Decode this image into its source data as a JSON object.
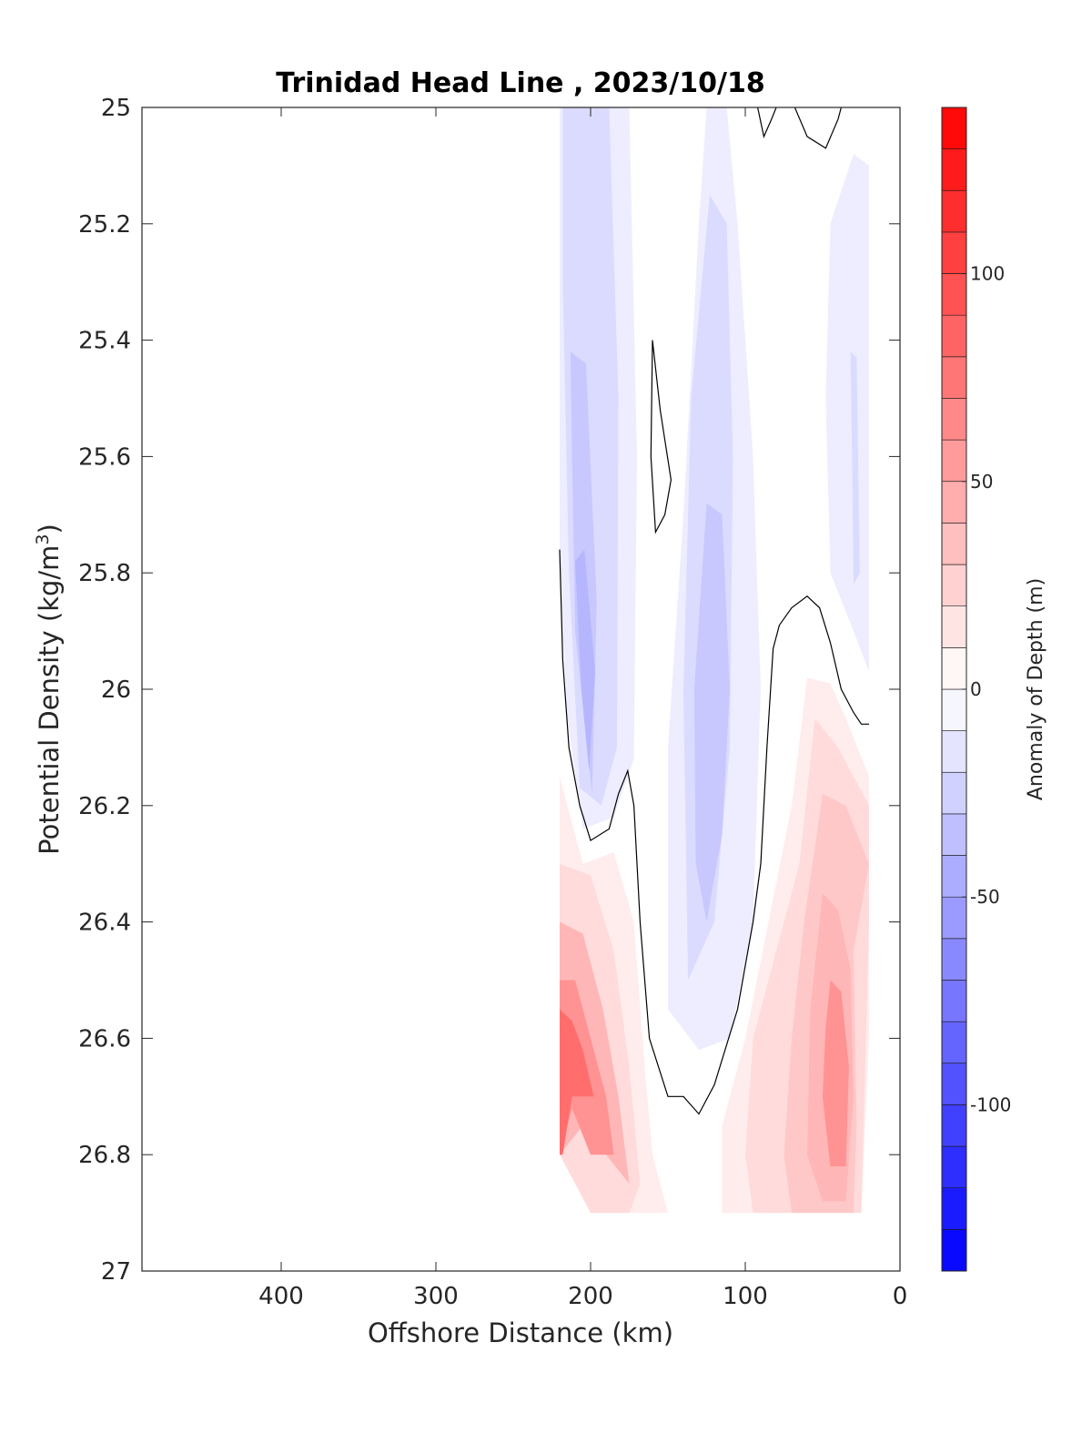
{
  "chart_data": {
    "type": "contourf",
    "title": "Trinidad Head Line , 2023/10/18",
    "xlabel": "Offshore Distance (km)",
    "ylabel": "Potential Density (kg/m",
    "ylabel_superscript": "3",
    "ylabel_suffix": ")",
    "xlim": [
      0,
      490
    ],
    "x_reversed": true,
    "ylim": [
      25,
      27
    ],
    "y_reversed": true,
    "xticks": [
      400,
      300,
      200,
      100,
      0
    ],
    "yticks": [
      25,
      25.2,
      25.4,
      25.6,
      25.8,
      26,
      26.2,
      26.4,
      26.6,
      26.8,
      27
    ],
    "ytick_labels": [
      "25",
      "25.2",
      "25.4",
      "25.6",
      "25.8",
      "26",
      "26.2",
      "26.4",
      "26.6",
      "26.8",
      "27"
    ],
    "colorbar": {
      "label": "Anomaly of Depth (m)",
      "limits": [
        -140,
        140
      ],
      "ticks": [
        -100,
        -50,
        0,
        50,
        100
      ],
      "step": 10,
      "low_color": "#0000ff",
      "high_color": "#ff0000"
    },
    "zero_contour_lines": [
      [
        [
          220,
          25.76
        ],
        [
          218,
          25.95
        ],
        [
          214,
          26.1
        ],
        [
          207,
          26.2
        ],
        [
          200,
          26.26
        ],
        [
          188,
          26.24
        ],
        [
          182,
          26.18
        ],
        [
          176,
          26.14
        ],
        [
          172,
          26.2
        ],
        [
          168,
          26.4
        ],
        [
          162,
          26.6
        ],
        [
          150,
          26.7
        ],
        [
          140,
          26.7
        ],
        [
          130,
          26.73
        ],
        [
          120,
          26.68
        ],
        [
          105,
          26.55
        ],
        [
          95,
          26.4
        ],
        [
          90,
          26.3
        ],
        [
          86,
          26.1
        ],
        [
          82,
          25.93
        ],
        [
          78,
          25.89
        ],
        [
          70,
          25.86
        ],
        [
          60,
          25.84
        ],
        [
          52,
          25.86
        ],
        [
          45,
          25.92
        ],
        [
          38,
          26.0
        ],
        [
          30,
          26.04
        ],
        [
          25,
          26.06
        ],
        [
          20,
          26.06
        ]
      ],
      [
        [
          160,
          25.4
        ],
        [
          155,
          25.52
        ],
        [
          148,
          25.64
        ],
        [
          152,
          25.7
        ],
        [
          158,
          25.73
        ],
        [
          161,
          25.6
        ],
        [
          160,
          25.4
        ]
      ],
      [
        [
          92,
          25.0
        ],
        [
          88,
          25.05
        ],
        [
          83,
          25.02
        ],
        [
          80,
          25.0
        ]
      ],
      [
        [
          68,
          25.0
        ],
        [
          60,
          25.05
        ],
        [
          48,
          25.07
        ],
        [
          40,
          25.02
        ],
        [
          38,
          25.0
        ]
      ]
    ],
    "anomaly_regions": [
      {
        "sign": "negative",
        "level": -10,
        "points": [
          [
            220,
            25.0
          ],
          [
            175,
            25.0
          ],
          [
            170,
            25.6
          ],
          [
            172,
            26.12
          ],
          [
            185,
            26.22
          ],
          [
            205,
            26.24
          ],
          [
            215,
            26.05
          ],
          [
            220,
            25.8
          ]
        ]
      },
      {
        "sign": "negative",
        "level": -20,
        "points": [
          [
            218,
            25.0
          ],
          [
            188,
            25.0
          ],
          [
            182,
            25.5
          ],
          [
            183,
            26.1
          ],
          [
            193,
            26.2
          ],
          [
            207,
            26.17
          ],
          [
            214,
            25.8
          ],
          [
            218,
            25.3
          ]
        ]
      },
      {
        "sign": "negative",
        "level": -30,
        "points": [
          [
            213,
            25.42
          ],
          [
            203,
            25.44
          ],
          [
            196,
            25.85
          ],
          [
            199,
            26.18
          ],
          [
            210,
            25.9
          ],
          [
            212,
            25.6
          ]
        ]
      },
      {
        "sign": "negative",
        "level": -40,
        "points": [
          [
            210,
            25.78
          ],
          [
            204,
            25.76
          ],
          [
            197,
            25.97
          ],
          [
            201,
            26.14
          ],
          [
            206,
            26.0
          ]
        ]
      },
      {
        "sign": "negative",
        "level": -10,
        "points": [
          [
            125,
            25.0
          ],
          [
            112,
            25.0
          ],
          [
            105,
            25.2
          ],
          [
            95,
            25.6
          ],
          [
            90,
            26.0
          ],
          [
            95,
            26.4
          ],
          [
            110,
            26.6
          ],
          [
            130,
            26.62
          ],
          [
            150,
            26.55
          ],
          [
            150,
            26.1
          ],
          [
            140,
            25.7
          ],
          [
            130,
            25.2
          ]
        ]
      },
      {
        "sign": "negative",
        "level": -20,
        "points": [
          [
            123,
            25.15
          ],
          [
            112,
            25.2
          ],
          [
            108,
            25.6
          ],
          [
            110,
            26.1
          ],
          [
            120,
            26.4
          ],
          [
            137,
            26.5
          ],
          [
            140,
            26.0
          ],
          [
            135,
            25.5
          ]
        ]
      },
      {
        "sign": "negative",
        "level": -30,
        "points": [
          [
            125,
            25.68
          ],
          [
            115,
            25.7
          ],
          [
            110,
            26.0
          ],
          [
            115,
            26.25
          ],
          [
            125,
            26.4
          ],
          [
            132,
            26.3
          ],
          [
            133,
            26.0
          ]
        ]
      },
      {
        "sign": "negative",
        "level": -10,
        "points": [
          [
            30,
            25.08
          ],
          [
            20,
            25.1
          ],
          [
            20,
            25.97
          ],
          [
            30,
            25.9
          ],
          [
            45,
            25.8
          ],
          [
            48,
            25.5
          ],
          [
            45,
            25.2
          ]
        ]
      },
      {
        "sign": "negative",
        "level": -20,
        "points": [
          [
            32,
            25.42
          ],
          [
            28,
            25.43
          ],
          [
            26,
            25.8
          ],
          [
            30,
            25.82
          ],
          [
            31,
            25.6
          ]
        ]
      },
      {
        "sign": "positive",
        "level": 10,
        "points": [
          [
            220,
            26.15
          ],
          [
            205,
            26.3
          ],
          [
            185,
            26.28
          ],
          [
            172,
            26.4
          ],
          [
            165,
            26.65
          ],
          [
            160,
            26.8
          ],
          [
            150,
            26.9
          ],
          [
            170,
            26.9
          ],
          [
            195,
            26.9
          ],
          [
            205,
            26.85
          ],
          [
            220,
            26.8
          ]
        ]
      },
      {
        "sign": "positive",
        "level": 20,
        "points": [
          [
            220,
            26.3
          ],
          [
            200,
            26.32
          ],
          [
            185,
            26.45
          ],
          [
            175,
            26.65
          ],
          [
            168,
            26.85
          ],
          [
            175,
            26.9
          ],
          [
            200,
            26.9
          ],
          [
            220,
            26.8
          ]
        ]
      },
      {
        "sign": "positive",
        "level": 40,
        "points": [
          [
            220,
            26.4
          ],
          [
            205,
            26.42
          ],
          [
            192,
            26.55
          ],
          [
            182,
            26.7
          ],
          [
            175,
            26.85
          ],
          [
            190,
            26.8
          ],
          [
            205,
            26.75
          ],
          [
            220,
            26.8
          ]
        ]
      },
      {
        "sign": "positive",
        "level": 60,
        "points": [
          [
            220,
            26.5
          ],
          [
            210,
            26.5
          ],
          [
            200,
            26.6
          ],
          [
            190,
            26.7
          ],
          [
            185,
            26.8
          ],
          [
            200,
            26.8
          ],
          [
            212,
            26.72
          ],
          [
            220,
            26.8
          ]
        ]
      },
      {
        "sign": "positive",
        "level": 80,
        "points": [
          [
            220,
            26.55
          ],
          [
            212,
            26.57
          ],
          [
            205,
            26.62
          ],
          [
            198,
            26.7
          ],
          [
            205,
            26.7
          ],
          [
            212,
            26.7
          ],
          [
            218,
            26.8
          ],
          [
            220,
            26.8
          ]
        ]
      },
      {
        "sign": "positive",
        "level": 10,
        "points": [
          [
            60,
            25.98
          ],
          [
            45,
            25.99
          ],
          [
            35,
            26.05
          ],
          [
            20,
            26.15
          ],
          [
            20,
            26.6
          ],
          [
            25,
            26.9
          ],
          [
            50,
            26.9
          ],
          [
            90,
            26.9
          ],
          [
            115,
            26.9
          ],
          [
            115,
            26.75
          ],
          [
            100,
            26.6
          ],
          [
            85,
            26.4
          ],
          [
            70,
            26.2
          ]
        ]
      },
      {
        "sign": "positive",
        "level": 20,
        "points": [
          [
            55,
            26.05
          ],
          [
            40,
            26.1
          ],
          [
            20,
            26.2
          ],
          [
            20,
            26.4
          ],
          [
            25,
            26.9
          ],
          [
            50,
            26.9
          ],
          [
            80,
            26.9
          ],
          [
            95,
            26.9
          ],
          [
            100,
            26.8
          ],
          [
            95,
            26.6
          ],
          [
            80,
            26.45
          ],
          [
            65,
            26.3
          ]
        ]
      },
      {
        "sign": "positive",
        "level": 30,
        "points": [
          [
            50,
            26.18
          ],
          [
            35,
            26.2
          ],
          [
            20,
            26.3
          ],
          [
            30,
            26.45
          ],
          [
            28,
            26.75
          ],
          [
            30,
            26.9
          ],
          [
            55,
            26.9
          ],
          [
            70,
            26.9
          ],
          [
            75,
            26.8
          ],
          [
            70,
            26.6
          ],
          [
            62,
            26.4
          ]
        ]
      },
      {
        "sign": "positive",
        "level": 40,
        "points": [
          [
            50,
            26.35
          ],
          [
            40,
            26.38
          ],
          [
            32,
            26.48
          ],
          [
            30,
            26.7
          ],
          [
            35,
            26.88
          ],
          [
            50,
            26.88
          ],
          [
            60,
            26.8
          ],
          [
            58,
            26.55
          ]
        ]
      },
      {
        "sign": "positive",
        "level": 60,
        "points": [
          [
            45,
            26.5
          ],
          [
            38,
            26.52
          ],
          [
            33,
            26.65
          ],
          [
            35,
            26.82
          ],
          [
            45,
            26.82
          ],
          [
            50,
            26.7
          ],
          [
            48,
            26.58
          ]
        ]
      }
    ]
  }
}
